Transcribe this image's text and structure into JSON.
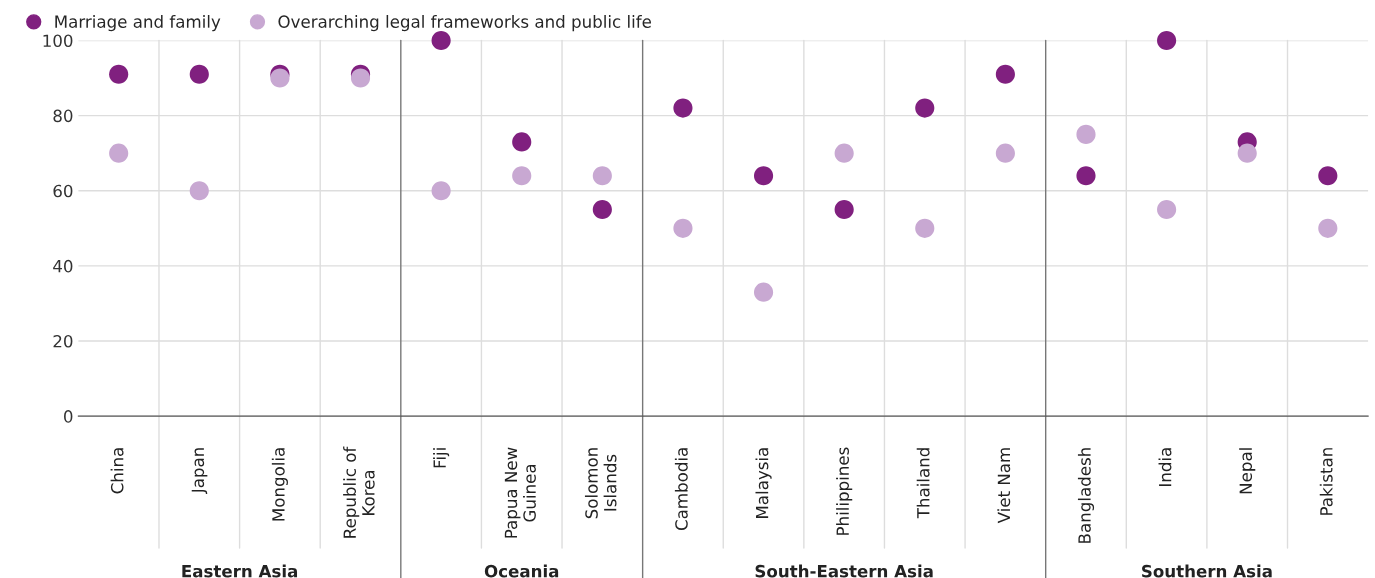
{
  "chart_data": [
    {
      "type": "scatter",
      "xlabel": "Eastern Asia",
      "categories": [
        "China",
        "Japan",
        "Mongolia",
        "Republic of\nKorea"
      ],
      "series": [
        {
          "name": "Marriage and family",
          "color": "#80207f",
          "values": [
            91,
            91,
            91,
            91
          ]
        },
        {
          "name": "Overarching legal frameworks and public life",
          "color": "#c8a8d2",
          "values": [
            70,
            60,
            90,
            90
          ]
        }
      ],
      "ylim": [
        0,
        100
      ],
      "yticks": [
        0,
        20,
        40,
        60,
        80,
        100
      ],
      "grid": "y",
      "legend": "top right",
      "marker": "circle"
    },
    {
      "type": "scatter",
      "xlabel": "Oceania",
      "categories": [
        "Fiji",
        "Papua New\nGuinea",
        "Solomon\nIslands"
      ],
      "series": [
        {
          "color": "#80207f",
          "values": [
            100,
            73,
            55
          ]
        },
        {
          "color": "#c8a8d2",
          "values": [
            60,
            64,
            64
          ]
        }
      ],
      "ylim": [
        0,
        100
      ],
      "yticks": [
        0,
        20,
        40,
        60,
        80,
        100
      ],
      "grid": "y",
      "marker": "circle",
      "tick_labels": "x"
    },
    {
      "type": "scatter",
      "xlabel": "South-Eastern Asia",
      "categories": [
        "Cambodia",
        "Malaysia",
        "Philippines",
        "Thailand",
        "Viet Nam"
      ],
      "series": [
        {
          "color": "#80207f",
          "values": [
            82,
            64,
            55,
            82,
            91
          ]
        },
        {
          "color": "#c8a8d2",
          "values": [
            50,
            33,
            70,
            50,
            70
          ]
        }
      ],
      "ylim": [
        0,
        100
      ],
      "yticks": [
        0,
        20,
        40,
        60,
        80,
        100
      ],
      "grid": "y",
      "marker": "circle",
      "tick_labels": "x"
    },
    {
      "type": "scatter",
      "xlabel": "Southern Asia",
      "categories": [
        "Bangladesh",
        "India",
        "Nepal",
        "Pakistan"
      ],
      "series": [
        {
          "color": "#80207f",
          "values": [
            64,
            100,
            73,
            64
          ]
        },
        {
          "color": "#c8a8d2",
          "values": [
            75,
            55,
            70,
            50
          ]
        }
      ],
      "ylim": [
        0,
        100
      ],
      "yticks": [
        0,
        20,
        40,
        60,
        80,
        100
      ],
      "grid": "y",
      "marker": "circle",
      "tick_labels": "x"
    }
  ]
}
